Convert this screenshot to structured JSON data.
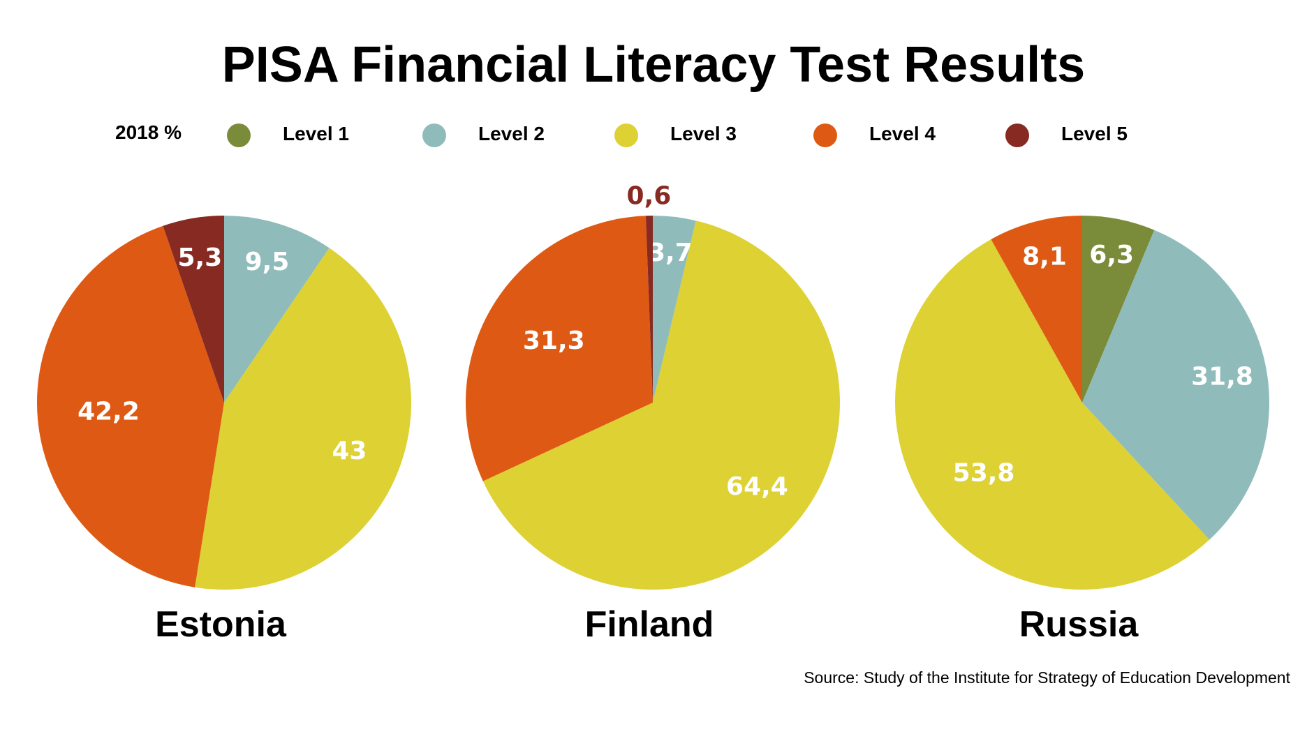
{
  "title": "PISA Financial Literacy Test Results",
  "legend": {
    "year_label": "2018 %",
    "items": [
      {
        "label": "Level 1",
        "color": "#7a8c3a"
      },
      {
        "label": "Level 2",
        "color": "#8fbcbb"
      },
      {
        "label": "Level 3",
        "color": "#ddd133"
      },
      {
        "label": "Level 4",
        "color": "#de5a14"
      },
      {
        "label": "Level 5",
        "color": "#862a22"
      }
    ]
  },
  "chart_data": [
    {
      "type": "pie",
      "title": "Estonia",
      "slices": [
        {
          "name": "Level 2",
          "value": 9.5,
          "label": "9,5",
          "color": "#8fbcbb"
        },
        {
          "name": "Level 3",
          "value": 43,
          "label": "43",
          "color": "#ddd133"
        },
        {
          "name": "Level 4",
          "value": 42.2,
          "label": "42,2",
          "color": "#de5a14"
        },
        {
          "name": "Level 5",
          "value": 5.3,
          "label": "5,3",
          "color": "#862a22"
        }
      ]
    },
    {
      "type": "pie",
      "title": "Finland",
      "slices": [
        {
          "name": "Level 2",
          "value": 3.7,
          "label": "3,7",
          "color": "#8fbcbb"
        },
        {
          "name": "Level 3",
          "value": 64.4,
          "label": "64,4",
          "color": "#ddd133"
        },
        {
          "name": "Level 4",
          "value": 31.3,
          "label": "31,3",
          "color": "#de5a14"
        },
        {
          "name": "Level 5",
          "value": 0.6,
          "label": "0,6",
          "color": "#862a22"
        }
      ]
    },
    {
      "type": "pie",
      "title": "Russia",
      "slices": [
        {
          "name": "Level 1",
          "value": 6.3,
          "label": "6,3",
          "color": "#7a8c3a"
        },
        {
          "name": "Level 2",
          "value": 31.8,
          "label": "31,8",
          "color": "#8fbcbb"
        },
        {
          "name": "Level 3",
          "value": 53.8,
          "label": "53,8",
          "color": "#ddd133"
        },
        {
          "name": "Level 4",
          "value": 8.1,
          "label": "8,1",
          "color": "#de5a14"
        }
      ]
    }
  ],
  "source": "Source: Study of the Institute for Strategy of Education Development"
}
